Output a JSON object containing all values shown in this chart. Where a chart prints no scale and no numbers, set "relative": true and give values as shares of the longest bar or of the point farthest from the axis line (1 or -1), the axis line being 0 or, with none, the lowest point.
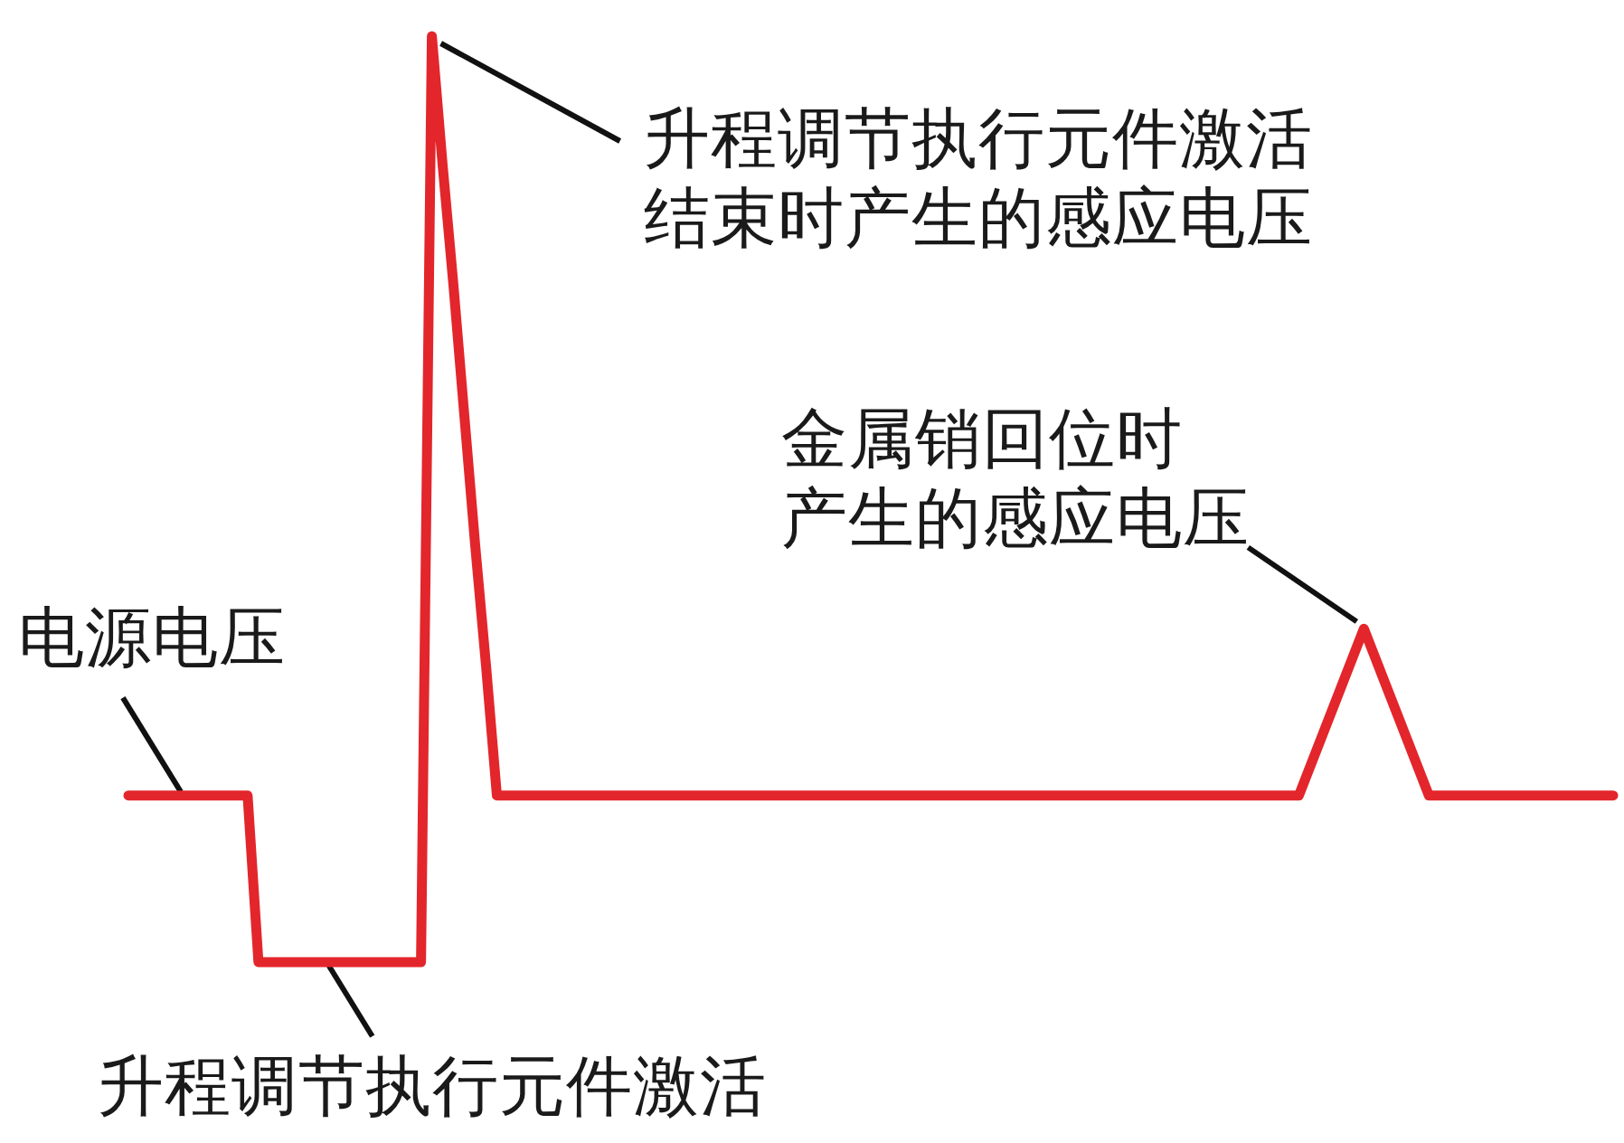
{
  "chart_data": {
    "type": "line",
    "relative": true,
    "categories": [
      null,
      null,
      null,
      null,
      null,
      null,
      null,
      null,
      null,
      null,
      null,
      null,
      null,
      null,
      null,
      null,
      null,
      null,
      null,
      null,
      null,
      null,
      null,
      null,
      null,
      null,
      null,
      null,
      null,
      null,
      null,
      null,
      null,
      null,
      null,
      null,
      null,
      null,
      null,
      null,
      null,
      null,
      null,
      null,
      null,
      null,
      null,
      null,
      null,
      null,
      null,
      null,
      null,
      null,
      null,
      null,
      null,
      null,
      null,
      null,
      null,
      null,
      null,
      null,
      null,
      null,
      null,
      null,
      null,
      null,
      null,
      null,
      null,
      null,
      null,
      null,
      null,
      null,
      null,
      null,
      null,
      null,
      null,
      null,
      null,
      null,
      null,
      null,
      null,
      null,
      null,
      null,
      null,
      null,
      null,
      null,
      null,
      null,
      null,
      null,
      null,
      null,
      null,
      null,
      null,
      null,
      null,
      null,
      null,
      null,
      null,
      null,
      null,
      null,
      null,
      null,
      null,
      null,
      null,
      null,
      null,
      null,
      null,
      null,
      null,
      null,
      null,
      null,
      null,
      null,
      null,
      null,
      null,
      null,
      null,
      null,
      null,
      null
    ],
    "series": [
      {
        "color": "#e3262b",
        "values": [
          0.18,
          0.18,
          0.18,
          0.18,
          0.18,
          0.18,
          0.18,
          0.18,
          0.18,
          0.18,
          0.18,
          0.18,
          0,
          0,
          0,
          0,
          0,
          0,
          0,
          0,
          0,
          0,
          0,
          0,
          0,
          0,
          0,
          0,
          1,
          0.86,
          0.73,
          0.59,
          0.45,
          0.32,
          0.18,
          0.18,
          0.18,
          0.18,
          0.18,
          0.18,
          0.18,
          0.18,
          0.18,
          0.18,
          0.18,
          0.18,
          0.18,
          0.18,
          0.18,
          0.18,
          0.18,
          0.18,
          0.18,
          0.18,
          0.18,
          0.18,
          0.18,
          0.18,
          0.18,
          0.18,
          0.18,
          0.18,
          0.18,
          0.18,
          0.18,
          0.18,
          0.18,
          0.18,
          0.18,
          0.18,
          0.18,
          0.18,
          0.18,
          0.18,
          0.18,
          0.18,
          0.18,
          0.18,
          0.18,
          0.18,
          0.18,
          0.18,
          0.18,
          0.18,
          0.18,
          0.18,
          0.18,
          0.18,
          0.18,
          0.18,
          0.18,
          0.18,
          0.18,
          0.18,
          0.18,
          0.18,
          0.18,
          0.18,
          0.18,
          0.18,
          0.18,
          0.18,
          0.18,
          0.18,
          0.18,
          0.18,
          0.18,
          0.18,
          0.18,
          0.21,
          0.24,
          0.27,
          0.3,
          0.33,
          0.36,
          0.33,
          0.3,
          0.27,
          0.24,
          0.21,
          0.18,
          0.18,
          0.18,
          0.18,
          0.18,
          0.18,
          0.18,
          0.18,
          0.18,
          0.18,
          0.18,
          0.18,
          0.18,
          0.18,
          0.18,
          0.18,
          0.18,
          0.18
        ]
      }
    ],
    "annotations": [
      "升程调节执行元件激活结束时产生的感应电压",
      "金属销回位时产生的感应电压",
      "电源电压",
      "升程调节执行元件激活"
    ]
  }
}
